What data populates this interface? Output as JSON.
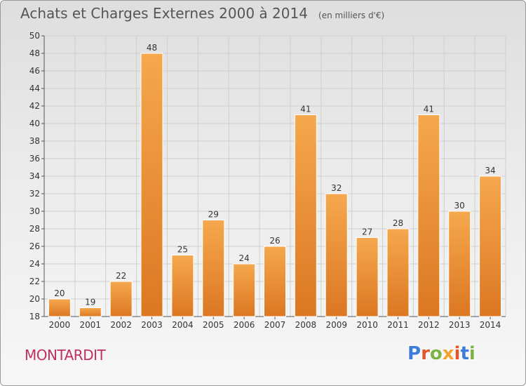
{
  "header": {
    "title": "Achats et Charges Externes 2000 à 2014",
    "subtitle": "(en milliers d'€)"
  },
  "footer": {
    "commune": "MONTARDIT",
    "logo_text": "Proxiti",
    "logo_colors": [
      "#3b7dd8",
      "#e2562e",
      "#7cb342",
      "#f2a230",
      "#e2562e",
      "#3b7dd8",
      "#7cb342"
    ]
  },
  "colors": {
    "bar_top": "#f5a84e",
    "bar_bottom": "#dc7722",
    "grid": "#cfcfcf",
    "axis_text": "#333333"
  },
  "chart_data": {
    "type": "bar",
    "categories": [
      "2000",
      "2001",
      "2002",
      "2003",
      "2004",
      "2005",
      "2006",
      "2007",
      "2008",
      "2009",
      "2010",
      "2011",
      "2012",
      "2013",
      "2014"
    ],
    "values": [
      20,
      19,
      22,
      48,
      25,
      29,
      24,
      26,
      41,
      32,
      27,
      28,
      41,
      30,
      34
    ],
    "ylim": [
      18,
      50
    ],
    "yticks": [
      18,
      20,
      22,
      24,
      26,
      28,
      30,
      32,
      34,
      36,
      38,
      40,
      42,
      44,
      46,
      48,
      50
    ],
    "grid": true,
    "show_value_labels": true
  }
}
